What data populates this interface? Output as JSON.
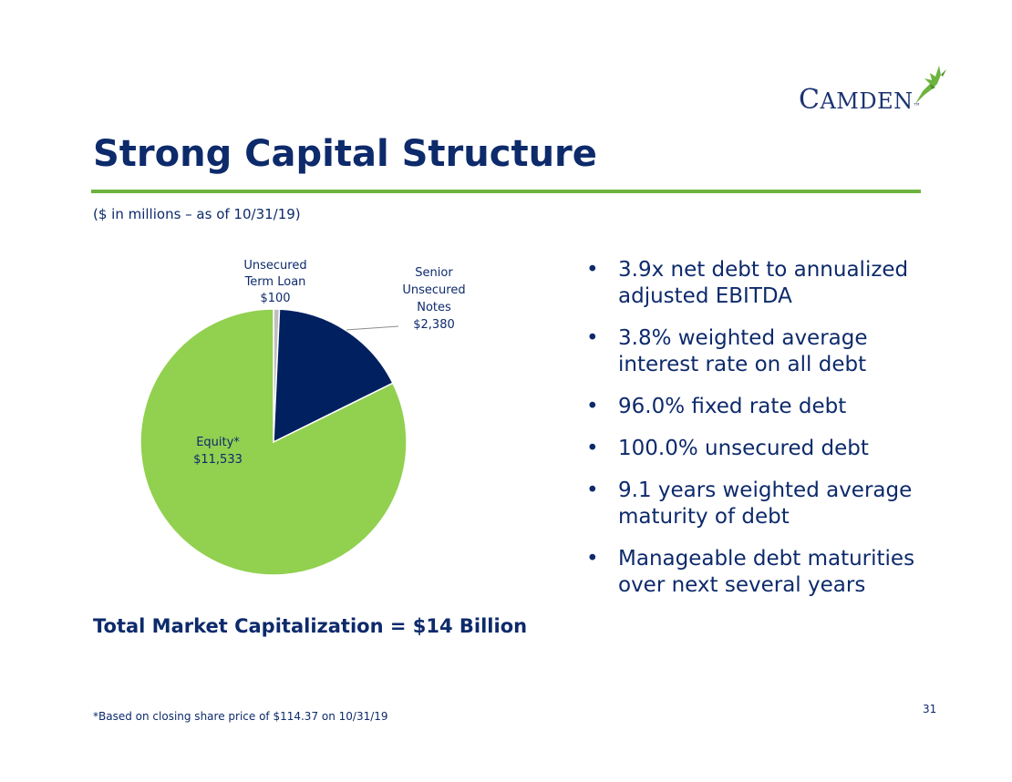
{
  "logo": {
    "text_first": "C",
    "text_rest": "AMDEN",
    "tm": "™",
    "icon": "hummingbird-icon"
  },
  "slide": {
    "title": "Strong Capital Structure",
    "subtitle": "($ in millions – as of 10/31/19)",
    "total": "Total Market Capitalization = $14 Billion",
    "footnote": "*Based on closing share price of $114.37 on 10/31/19",
    "page_number": "31"
  },
  "bullets": [
    "3.9x net debt to annualized adjusted EBITDA",
    "3.8% weighted average interest rate on all debt",
    "96.0% fixed rate debt",
    "100.0% unsecured debt",
    "9.1 years weighted average maturity of debt",
    "Manageable debt maturities over next several years"
  ],
  "bullet_symbol": "•",
  "colors": {
    "navy": "#0d2a6b",
    "green_rule": "#6db33f",
    "equity": "#92d050",
    "notes": "#002060",
    "term_loan": "#bfbfbf"
  },
  "chart_data": {
    "type": "pie",
    "slices": [
      {
        "label_lines": [
          "Unsecured",
          "Term Loan",
          "$100"
        ],
        "value": 100,
        "color": "#bfbfbf"
      },
      {
        "label_lines": [
          "Senior",
          "Unsecured",
          "Notes",
          "$2,380"
        ],
        "value": 2380,
        "color": "#002060"
      },
      {
        "label_lines": [
          "Equity*",
          "$11,533"
        ],
        "value": 11533,
        "color": "#92d050"
      }
    ]
  }
}
